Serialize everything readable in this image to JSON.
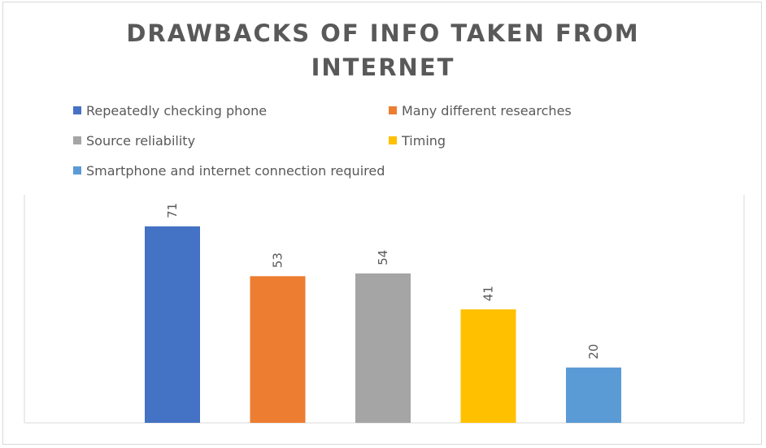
{
  "chart_data": {
    "type": "bar",
    "title": "DRAWBACKS OF INFO TAKEN FROM INTERNET",
    "title_lines": [
      "DRAWBACKS OF INFO TAKEN FROM",
      "INTERNET"
    ],
    "xlabel": "",
    "ylabel": "",
    "ylim": [
      0,
      80
    ],
    "grid": false,
    "legend_placement": "top",
    "series": [
      {
        "name": "Repeatedly checking phone",
        "value": 71,
        "color": "#4472C4"
      },
      {
        "name": "Many different researches",
        "value": 53,
        "color": "#ED7D31"
      },
      {
        "name": "Source reliability",
        "value": 54,
        "color": "#A5A5A5"
      },
      {
        "name": "Timing",
        "value": 41,
        "color": "#FFC000"
      },
      {
        "name": "Smartphone and internet connection required",
        "value": 20,
        "color": "#5B9BD5"
      }
    ]
  }
}
